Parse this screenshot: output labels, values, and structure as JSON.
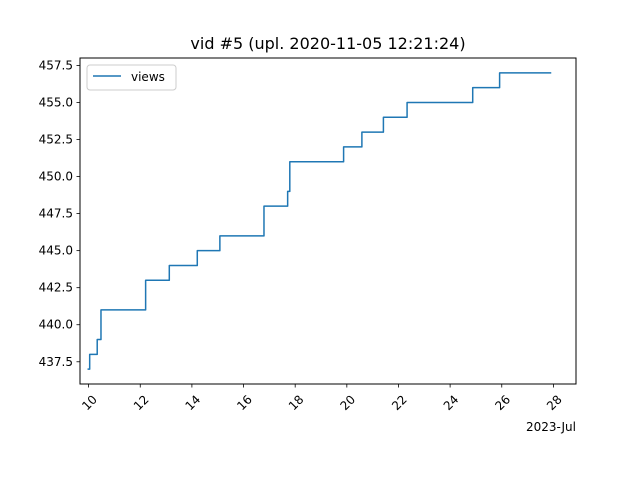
{
  "chart_data": {
    "type": "line",
    "title": "vid #5 (upl. 2020-11-05 12:21:24)",
    "xlabel": "",
    "ylabel": "",
    "x_axis_offset_label": "2023-Jul",
    "x_ticks": [
      "10",
      "12",
      "14",
      "16",
      "18",
      "20",
      "22",
      "24",
      "26",
      "28"
    ],
    "x_tick_values": [
      "2023-07-10",
      "2023-07-12",
      "2023-07-14",
      "2023-07-16",
      "2023-07-18",
      "2023-07-20",
      "2023-07-22",
      "2023-07-24",
      "2023-07-26",
      "2023-07-28"
    ],
    "y_ticks": [
      "437.5",
      "440.0",
      "442.5",
      "445.0",
      "447.5",
      "450.0",
      "452.5",
      "455.0",
      "457.5"
    ],
    "y_tick_values": [
      437.5,
      440.0,
      442.5,
      445.0,
      447.5,
      450.0,
      452.5,
      455.0,
      457.5
    ],
    "ylim": [
      436.0,
      458.0
    ],
    "xlim": [
      "2023-07-09T16:00",
      "2023-07-28T21:00"
    ],
    "grid": false,
    "legend": {
      "position": "top-left",
      "entries": [
        "views"
      ]
    },
    "series": [
      {
        "name": "views",
        "color": "#1f77b4",
        "step": true,
        "x": [
          "2023-07-09T23:00",
          "2023-07-10T01:00",
          "2023-07-10T05:00",
          "2023-07-10T08:00",
          "2023-07-10T11:00",
          "2023-07-10T11:30",
          "2023-07-10T18:00",
          "2023-07-12T05:00",
          "2023-07-13T03:00",
          "2023-07-14T05:00",
          "2023-07-15T02:00",
          "2023-07-16T02:00",
          "2023-07-16T19:00",
          "2023-07-17T17:00",
          "2023-07-17T18:00",
          "2023-07-17T19:00",
          "2023-07-19T21:00",
          "2023-07-20T14:00",
          "2023-07-21T10:00",
          "2023-07-22T08:00",
          "2023-07-24T21:00",
          "2023-07-25T22:00",
          "2023-07-27T22:00"
        ],
        "y": [
          437,
          438,
          438,
          439,
          439,
          441,
          441,
          443,
          444,
          445,
          446,
          446,
          448,
          449,
          449,
          451,
          452,
          453,
          454,
          455,
          456,
          457,
          457
        ]
      }
    ]
  },
  "colors": {
    "line": "#1f77b4",
    "axis": "#000000",
    "background": "#ffffff",
    "legend_border": "#cccccc"
  }
}
